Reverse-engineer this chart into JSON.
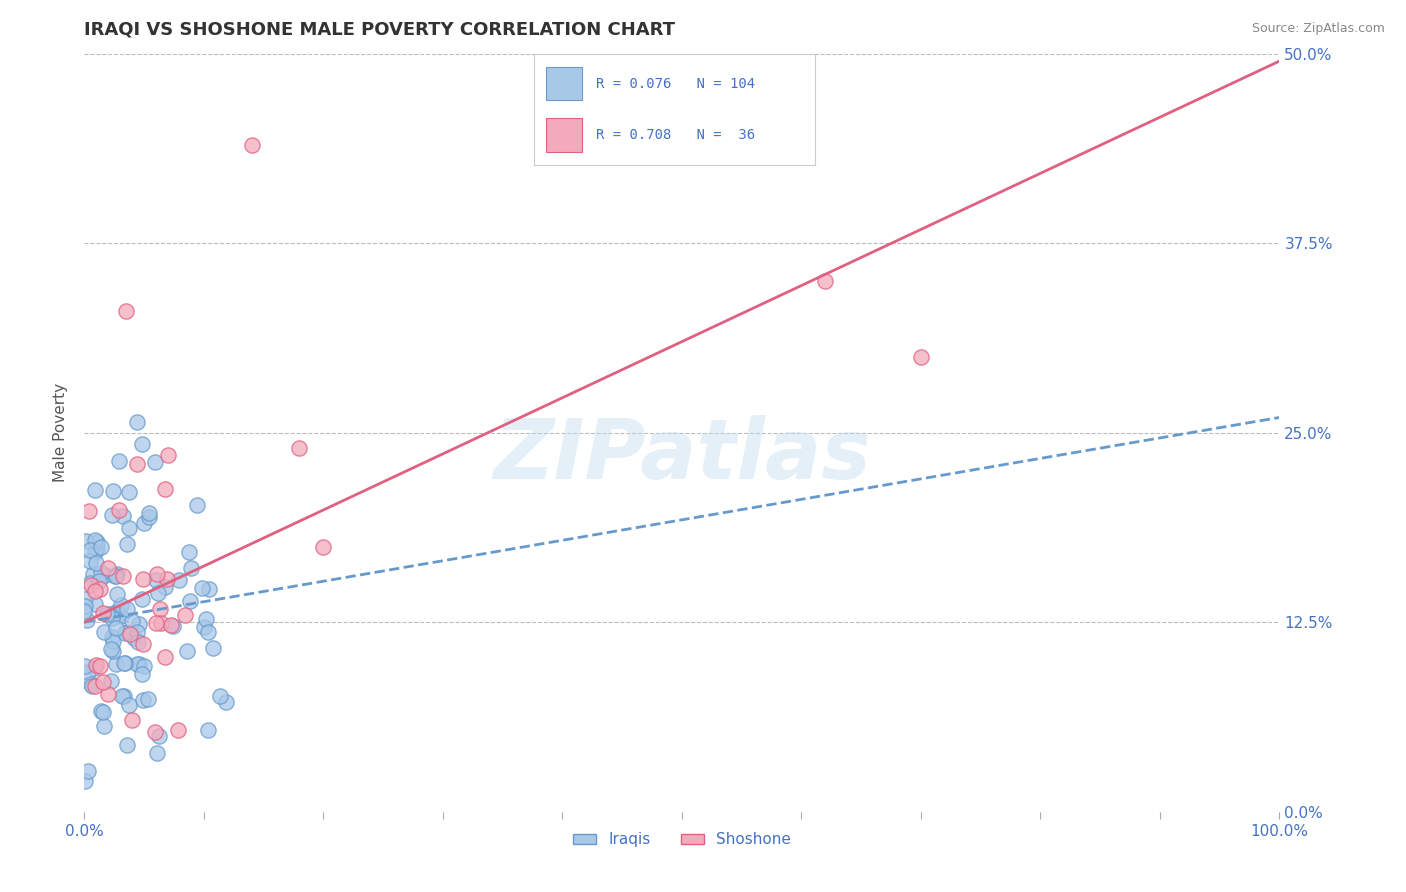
{
  "title": "IRAQI VS SHOSHONE MALE POVERTY CORRELATION CHART",
  "source_text": "Source: ZipAtlas.com",
  "ylabel": "Male Poverty",
  "xlim": [
    0,
    100
  ],
  "ylim": [
    0,
    50
  ],
  "ytick_vals": [
    0,
    12.5,
    25.0,
    37.5,
    50.0
  ],
  "ytick_labels": [
    "0.0%",
    "12.5%",
    "25.0%",
    "37.5%",
    "50.0%"
  ],
  "xtick_vals": [
    0,
    10,
    20,
    30,
    40,
    50,
    60,
    70,
    80,
    90,
    100
  ],
  "background_color": "#ffffff",
  "grid_color": "#bbbbbb",
  "watermark_text": "ZIPatlas",
  "iraqi_color": "#a8c8e8",
  "shoshone_color": "#f4aabc",
  "iraqi_edge": "#6699cc",
  "shoshone_edge": "#e06080",
  "trend_iraqi_color": "#6699cc",
  "trend_shoshone_color": "#e06080",
  "title_color": "#333333",
  "axis_label_color": "#555555",
  "tick_color": "#4472c4",
  "source_color": "#888888",
  "legend_r1": "R = 0.076",
  "legend_n1": "N = 104",
  "legend_r2": "R = 0.708",
  "legend_n2": "N =  36",
  "iraqi_trend_intercept": 12.5,
  "iraqi_trend_slope": 0.135,
  "shoshone_trend_intercept": 12.5,
  "shoshone_trend_slope": 0.37,
  "n_iraqi": 104,
  "n_shoshone": 36,
  "random_seed": 17
}
